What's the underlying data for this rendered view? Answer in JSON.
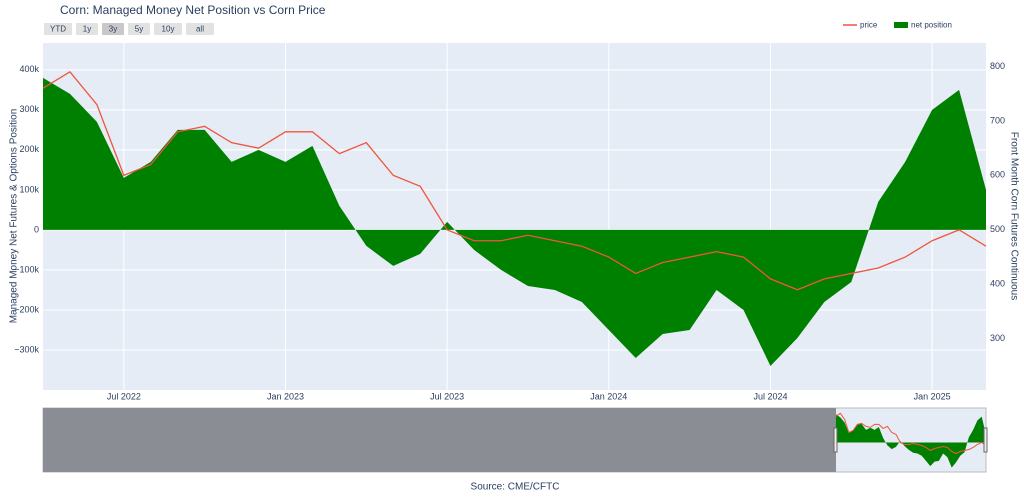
{
  "chart_data": {
    "type": "area-line",
    "title": "Corn: Managed Money Net Position vs Corn Price",
    "range_buttons": [
      "YTD",
      "1y",
      "3y",
      "5y",
      "10y",
      "all"
    ],
    "active_button": "3y",
    "x": [
      "2022-04",
      "2022-05",
      "2022-06",
      "2022-07",
      "2022-08",
      "2022-09",
      "2022-10",
      "2022-11",
      "2022-12",
      "2023-01",
      "2023-02",
      "2023-03",
      "2023-04",
      "2023-05",
      "2023-06",
      "2023-07",
      "2023-08",
      "2023-09",
      "2023-10",
      "2023-11",
      "2023-12",
      "2024-01",
      "2024-02",
      "2024-03",
      "2024-04",
      "2024-05",
      "2024-06",
      "2024-07",
      "2024-08",
      "2024-09",
      "2024-10",
      "2024-11",
      "2024-12",
      "2025-01",
      "2025-02",
      "2025-03"
    ],
    "series": [
      {
        "name": "price",
        "color": "#ef553b",
        "axis": "y2",
        "values": [
          760,
          790,
          730,
          600,
          620,
          680,
          690,
          660,
          650,
          680,
          680,
          640,
          660,
          600,
          580,
          500,
          480,
          480,
          490,
          480,
          470,
          450,
          420,
          440,
          450,
          460,
          450,
          410,
          390,
          410,
          420,
          430,
          450,
          480,
          500,
          470
        ]
      },
      {
        "name": "net position",
        "color": "#008000",
        "values": [
          380000,
          340000,
          270000,
          130000,
          170000,
          250000,
          250000,
          170000,
          200000,
          170000,
          210000,
          60000,
          -40000,
          -90000,
          -60000,
          20000,
          -50000,
          -100000,
          -140000,
          -150000,
          -180000,
          -250000,
          -320000,
          -260000,
          -250000,
          -150000,
          -200000,
          -340000,
          -270000,
          -180000,
          -130000,
          70000,
          170000,
          300000,
          350000,
          100000
        ]
      }
    ],
    "xlim": [
      "2022-04",
      "2025-03"
    ],
    "xticks": [
      {
        "value": "2022-07",
        "label": "Jul 2022"
      },
      {
        "value": "2023-01",
        "label": "Jan 2023"
      },
      {
        "value": "2023-07",
        "label": "Jul 2023"
      },
      {
        "value": "2024-01",
        "label": "Jan 2024"
      },
      {
        "value": "2024-07",
        "label": "Jul 2024"
      },
      {
        "value": "2025-01",
        "label": "Jan 2025"
      }
    ],
    "ylim": [
      -400000,
      467000
    ],
    "yticks": [
      {
        "value": -300000,
        "label": "−300k"
      },
      {
        "value": -200000,
        "label": "−200k"
      },
      {
        "value": -100000,
        "label": "−100k"
      },
      0,
      {
        "value": 100000,
        "label": "100k"
      },
      {
        "value": 200000,
        "label": "200k"
      },
      {
        "value": 300000,
        "label": "300k"
      },
      {
        "value": 400000,
        "label": "400k"
      }
    ],
    "y2lim": [
      206,
      843
    ],
    "y2ticks": [
      300,
      400,
      500,
      600,
      700,
      800
    ],
    "ylabel": "Managed Money Net Futures & Options Position",
    "y2label": "Front Month Corn Futures Continuous",
    "source": "Source: CME/CFTC",
    "grid": true,
    "legend": "top-right"
  }
}
